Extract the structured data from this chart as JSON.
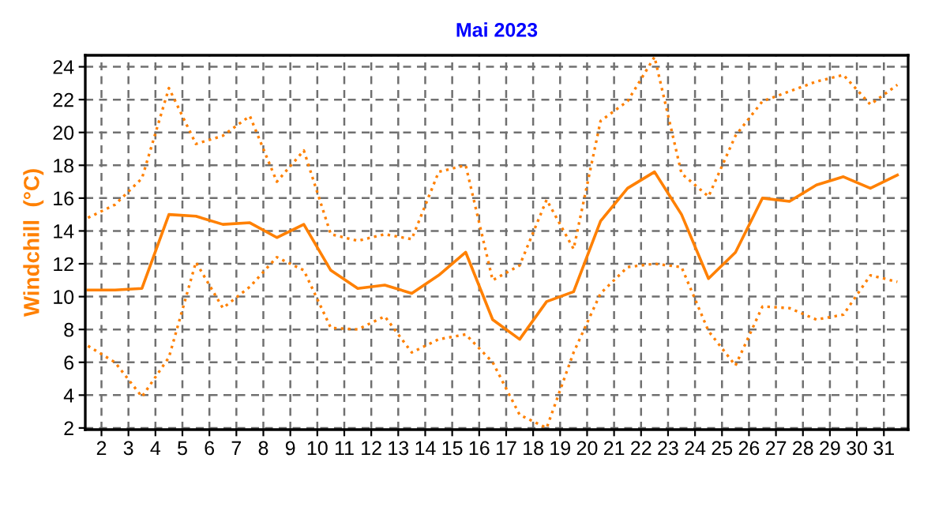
{
  "chart_data": {
    "type": "line",
    "title": "Mai 2023",
    "ylabel": "Windchill  (°C)",
    "x": [
      1.5,
      2.5,
      3.5,
      4.5,
      5.5,
      6.5,
      7.5,
      8.5,
      9.5,
      10.5,
      11.5,
      12.5,
      13.5,
      14.5,
      15.5,
      16.5,
      17.5,
      18.5,
      19.5,
      20.5,
      21.5,
      22.5,
      23.5,
      24.5,
      25.5,
      26.5,
      27.5,
      28.5,
      29.5,
      30.5,
      31.5
    ],
    "series": [
      {
        "color": "#ff8000",
        "line_style": "dotted",
        "values": [
          14.8,
          15.6,
          17.2,
          22.7,
          19.3,
          19.8,
          21.0,
          17.0,
          18.9,
          13.8,
          13.4,
          13.8,
          13.5,
          17.6,
          18.0,
          11.0,
          11.9,
          15.9,
          12.9,
          20.7,
          21.9,
          24.6,
          17.5,
          16.1,
          19.8,
          21.9,
          22.5,
          23.1,
          23.5,
          21.7,
          22.9
        ]
      },
      {
        "color": "#ff8000",
        "line_style": "solid",
        "values": [
          10.4,
          10.4,
          10.5,
          15.0,
          14.9,
          14.4,
          14.5,
          13.6,
          14.4,
          11.6,
          10.5,
          10.7,
          10.2,
          11.3,
          12.7,
          8.6,
          7.4,
          9.7,
          10.3,
          14.6,
          16.6,
          17.6,
          15.0,
          11.1,
          12.7,
          16.0,
          15.8,
          16.8,
          17.3,
          16.6,
          17.4
        ]
      },
      {
        "color": "#ff8000",
        "line_style": "dotted",
        "values": [
          7.0,
          6.0,
          3.9,
          6.3,
          12.1,
          9.3,
          10.6,
          12.4,
          11.6,
          8.1,
          8.0,
          8.8,
          6.6,
          7.4,
          7.7,
          6.0,
          2.8,
          2.0,
          6.6,
          10.2,
          11.8,
          12.0,
          11.8,
          7.9,
          5.8,
          9.4,
          9.3,
          8.6,
          8.9,
          11.3,
          10.9
        ]
      }
    ],
    "xlim": [
      1.4,
      31.9
    ],
    "xticks": [
      2,
      3,
      4,
      5,
      6,
      7,
      8,
      9,
      10,
      11,
      12,
      13,
      14,
      15,
      16,
      17,
      18,
      19,
      20,
      21,
      22,
      23,
      24,
      25,
      26,
      27,
      28,
      29,
      30,
      31
    ],
    "ylim": [
      1.9,
      24.7
    ],
    "yticks": [
      2,
      4,
      6,
      8,
      10,
      12,
      14,
      16,
      18,
      20,
      22,
      24
    ],
    "grid": true,
    "legend": false,
    "marker": "none"
  }
}
